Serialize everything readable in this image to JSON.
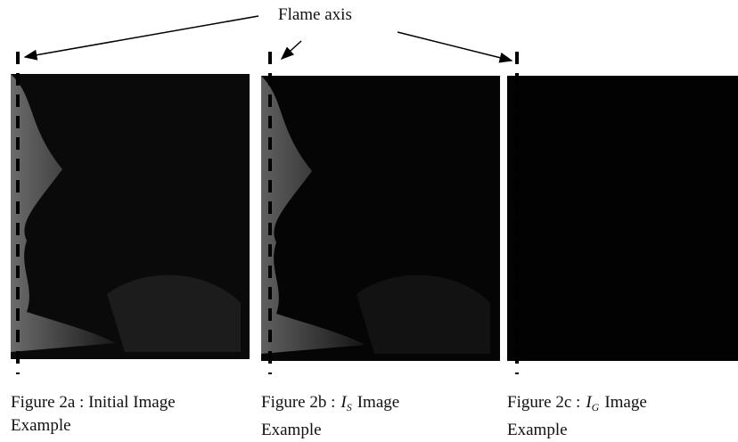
{
  "annotation": "Flame axis",
  "figures": [
    {
      "prefix": "Figure 2a : Initial Image",
      "line2": "Example"
    },
    {
      "prefix": "Figure 2b :",
      "symbol": "I",
      "subscript": "S",
      "suffix": "Image",
      "line2": "Example"
    },
    {
      "prefix": "Figure 2c :",
      "symbol": "I",
      "subscript": "G",
      "suffix": "Image",
      "line2": "Example"
    }
  ]
}
